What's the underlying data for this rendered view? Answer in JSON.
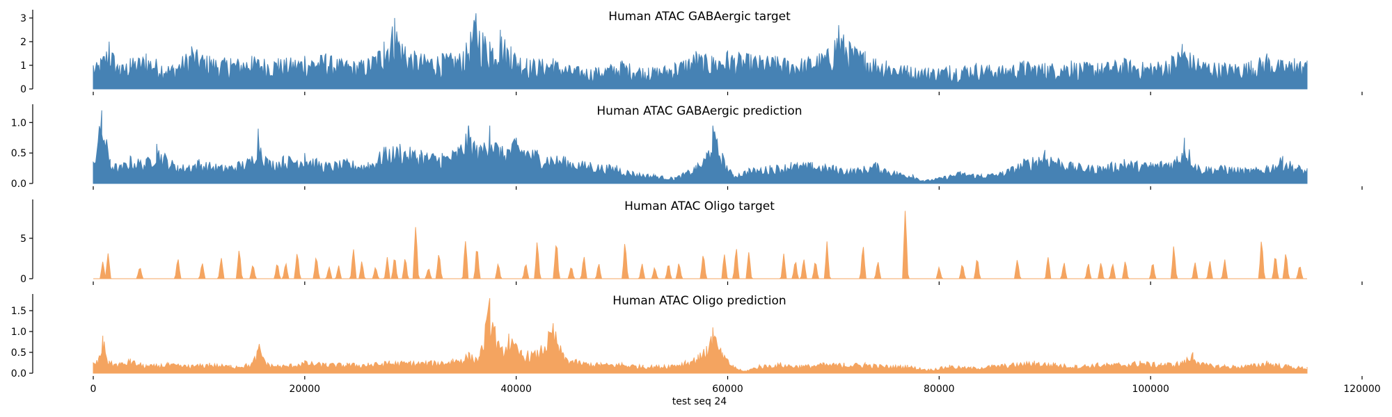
{
  "xlabel": "test seq 24",
  "x_axis": {
    "lim": [
      0,
      120000
    ],
    "ticks": [
      0,
      20000,
      40000,
      60000,
      80000,
      100000,
      120000
    ]
  },
  "chart_data": [
    {
      "type": "area",
      "title": "Human ATAC GABAergic target",
      "color": "#4682b4",
      "style": "dense",
      "ylim": [
        0,
        3.35
      ],
      "yticks": [
        0,
        1,
        2,
        3
      ],
      "ytick_labels": [
        "0",
        "1",
        "2",
        "3"
      ],
      "x": [
        0,
        700,
        1500,
        2500,
        3500,
        5000,
        7500,
        9300,
        11000,
        13000,
        15000,
        17500,
        20000,
        22000,
        24000,
        26000,
        27500,
        28500,
        29500,
        31000,
        33000,
        35000,
        36200,
        37500,
        38500,
        39500,
        41000,
        43500,
        45000,
        47500,
        50000,
        52500,
        55000,
        57000,
        58500,
        60000,
        62000,
        64500,
        67000,
        69500,
        70500,
        71500,
        73000,
        75000,
        77000,
        79000,
        81000,
        83500,
        86000,
        88000,
        90000,
        92500,
        95000,
        97500,
        100000,
        102000,
        103000,
        104500,
        107000,
        109500,
        111000,
        112500,
        113600,
        114800
      ],
      "y": [
        1.0,
        1.3,
        2.0,
        1.0,
        1.3,
        1.5,
        1.0,
        1.8,
        1.4,
        1.3,
        1.4,
        1.3,
        1.4,
        1.5,
        1.2,
        1.3,
        2.0,
        3.0,
        1.8,
        1.5,
        1.5,
        1.6,
        3.2,
        2.0,
        2.5,
        1.8,
        1.3,
        1.3,
        1.0,
        0.9,
        1.2,
        0.9,
        1.1,
        1.6,
        1.4,
        1.6,
        1.5,
        1.4,
        1.3,
        1.7,
        2.7,
        2.0,
        1.6,
        1.2,
        1.0,
        0.9,
        1.0,
        1.1,
        1.0,
        1.2,
        1.1,
        1.2,
        1.1,
        1.3,
        1.1,
        1.4,
        1.9,
        1.3,
        1.1,
        1.2,
        1.5,
        1.2,
        1.3,
        1.2
      ]
    },
    {
      "type": "area",
      "title": "Human ATAC GABAergic prediction",
      "color": "#4682b4",
      "style": "smooth",
      "ylim": [
        0,
        1.3
      ],
      "yticks": [
        0,
        0.5,
        1.0
      ],
      "ytick_labels": [
        "0.0",
        "0.5",
        "1.0"
      ],
      "x": [
        0,
        800,
        1600,
        2500,
        3500,
        5000,
        6000,
        8000,
        10000,
        12500,
        15000,
        15600,
        16500,
        18000,
        20000,
        22000,
        24000,
        26000,
        27500,
        29000,
        31000,
        33000,
        34500,
        35500,
        36500,
        37500,
        38500,
        40000,
        42000,
        44500,
        47000,
        49500,
        51000,
        53000,
        55000,
        57000,
        58000,
        58600,
        59500,
        60500,
        62000,
        64000,
        66000,
        68000,
        70000,
        72000,
        74000,
        76000,
        77500,
        78500,
        80000,
        82000,
        84000,
        86000,
        88000,
        90000,
        92500,
        95000,
        97500,
        100000,
        102500,
        103200,
        104500,
        107000,
        109500,
        111000,
        112500,
        114000,
        114800
      ],
      "y": [
        0.35,
        1.2,
        0.4,
        0.3,
        0.45,
        0.4,
        0.65,
        0.3,
        0.4,
        0.3,
        0.45,
        0.9,
        0.4,
        0.45,
        0.5,
        0.35,
        0.4,
        0.35,
        0.6,
        0.65,
        0.55,
        0.5,
        0.6,
        0.95,
        0.6,
        0.95,
        0.6,
        0.75,
        0.55,
        0.45,
        0.35,
        0.3,
        0.2,
        0.15,
        0.1,
        0.3,
        0.5,
        0.95,
        0.5,
        0.15,
        0.25,
        0.3,
        0.35,
        0.35,
        0.3,
        0.25,
        0.35,
        0.2,
        0.15,
        0.05,
        0.1,
        0.2,
        0.15,
        0.2,
        0.4,
        0.55,
        0.35,
        0.3,
        0.4,
        0.35,
        0.45,
        0.75,
        0.3,
        0.3,
        0.25,
        0.3,
        0.45,
        0.3,
        0.25
      ]
    },
    {
      "type": "area",
      "title": "Human ATAC Oligo target",
      "color": "#f4a460",
      "style": "peaks",
      "ylim": [
        0,
        9.8
      ],
      "yticks": [
        0,
        5
      ],
      "ytick_labels": [
        "0",
        "5"
      ],
      "peaks": [
        [
          900,
          2.3
        ],
        [
          1400,
          3.3
        ],
        [
          4400,
          1.8
        ],
        [
          8000,
          2.9
        ],
        [
          10300,
          2.2
        ],
        [
          12100,
          3.2
        ],
        [
          13800,
          4.1
        ],
        [
          15100,
          2.2
        ],
        [
          17400,
          2.2
        ],
        [
          18200,
          2.4
        ],
        [
          19300,
          3.9
        ],
        [
          21100,
          3.2
        ],
        [
          22300,
          1.8
        ],
        [
          23200,
          1.8
        ],
        [
          24600,
          4.4
        ],
        [
          25400,
          2.3
        ],
        [
          26700,
          1.8
        ],
        [
          27800,
          2.8
        ],
        [
          28500,
          3.1
        ],
        [
          29500,
          3.0
        ],
        [
          30500,
          7.3
        ],
        [
          31700,
          1.6
        ],
        [
          32700,
          3.8
        ],
        [
          35200,
          5.5
        ],
        [
          36300,
          4.8
        ],
        [
          38300,
          2.1
        ],
        [
          40900,
          2.2
        ],
        [
          42000,
          5.2
        ],
        [
          43800,
          5.7
        ],
        [
          45200,
          1.8
        ],
        [
          46400,
          3.2
        ],
        [
          47800,
          2.1
        ],
        [
          50300,
          5.2
        ],
        [
          51900,
          2.1
        ],
        [
          53100,
          1.7
        ],
        [
          54400,
          2.2
        ],
        [
          55400,
          2.3
        ],
        [
          57700,
          3.5
        ],
        [
          59700,
          3.5
        ],
        [
          60800,
          4.6
        ],
        [
          62000,
          3.9
        ],
        [
          65300,
          3.4
        ],
        [
          66400,
          2.6
        ],
        [
          67200,
          2.7
        ],
        [
          68300,
          2.7
        ],
        [
          69400,
          4.8
        ],
        [
          72800,
          4.6
        ],
        [
          74200,
          2.6
        ],
        [
          76800,
          9.2
        ],
        [
          80000,
          1.6
        ],
        [
          82200,
          2.1
        ],
        [
          83600,
          3.1
        ],
        [
          87400,
          2.7
        ],
        [
          90300,
          3.0
        ],
        [
          91800,
          2.3
        ],
        [
          94100,
          2.1
        ],
        [
          95300,
          2.3
        ],
        [
          96400,
          2.3
        ],
        [
          97600,
          2.6
        ],
        [
          100200,
          2.3
        ],
        [
          102200,
          4.6
        ],
        [
          104200,
          2.4
        ],
        [
          105600,
          2.3
        ],
        [
          107000,
          2.6
        ],
        [
          110500,
          5.5
        ],
        [
          111800,
          3.5
        ],
        [
          112800,
          3.7
        ],
        [
          114100,
          2.0
        ]
      ]
    },
    {
      "type": "area",
      "title": "Human ATAC Oligo prediction",
      "color": "#f4a460",
      "style": "smooth",
      "ylim": [
        0,
        1.9
      ],
      "yticks": [
        0,
        0.5,
        1.0,
        1.5
      ],
      "ytick_labels": [
        "0.0",
        "0.5",
        "1.0",
        "1.5"
      ],
      "x": [
        0,
        500,
        900,
        1500,
        2500,
        3500,
        5000,
        7000,
        9000,
        11000,
        13000,
        15000,
        15700,
        16500,
        18000,
        20000,
        22000,
        24000,
        26000,
        28000,
        30000,
        32000,
        34000,
        35500,
        36500,
        37500,
        38500,
        39300,
        40500,
        42000,
        43500,
        44500,
        46000,
        48000,
        50000,
        52000,
        54000,
        56000,
        57200,
        58000,
        58600,
        59500,
        60500,
        61500,
        63000,
        65000,
        67000,
        69000,
        71000,
        73000,
        75000,
        77000,
        79000,
        81000,
        83000,
        85000,
        87000,
        89000,
        91000,
        93000,
        95000,
        97000,
        99000,
        101000,
        103000,
        104000,
        105000,
        107000,
        109000,
        111000,
        113000,
        114800
      ],
      "y": [
        0.25,
        0.35,
        0.9,
        0.3,
        0.25,
        0.35,
        0.2,
        0.25,
        0.2,
        0.25,
        0.2,
        0.25,
        0.7,
        0.25,
        0.2,
        0.3,
        0.25,
        0.25,
        0.25,
        0.3,
        0.3,
        0.3,
        0.35,
        0.5,
        0.4,
        1.8,
        0.6,
        0.95,
        0.55,
        0.55,
        1.2,
        0.45,
        0.3,
        0.25,
        0.25,
        0.2,
        0.2,
        0.3,
        0.45,
        0.65,
        1.1,
        0.5,
        0.2,
        0.05,
        0.2,
        0.25,
        0.2,
        0.25,
        0.25,
        0.25,
        0.2,
        0.2,
        0.1,
        0.2,
        0.15,
        0.2,
        0.25,
        0.3,
        0.25,
        0.2,
        0.25,
        0.25,
        0.3,
        0.25,
        0.3,
        0.5,
        0.25,
        0.2,
        0.2,
        0.3,
        0.2,
        0.15
      ]
    }
  ]
}
